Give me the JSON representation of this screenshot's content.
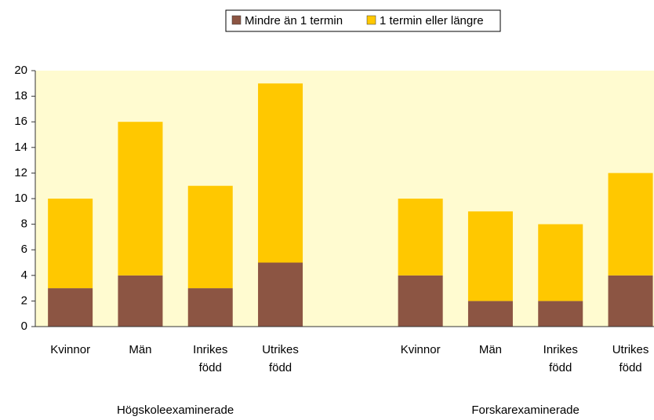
{
  "chart_data": {
    "type": "stacked_bar",
    "categories": [
      "Kvinnor",
      "Män",
      "Inrikes\nfödd",
      "Utrikes\nfödd",
      null,
      "Kvinnor",
      "Män",
      "Inrikes\nfödd",
      "Utrikes\nfödd"
    ],
    "groups": [
      "Högskoleexaminerade",
      "Forskarexaminerade"
    ],
    "series": [
      {
        "name": "Mindre än 1 termin",
        "color": "#8c5543",
        "values": [
          3,
          4,
          3,
          5,
          null,
          4,
          2,
          2,
          4
        ]
      },
      {
        "name": "1 termin eller längre",
        "color": "#ffc800",
        "values": [
          7,
          12,
          8,
          14,
          null,
          6,
          7,
          6,
          8
        ]
      }
    ],
    "ylim": [
      0,
      20
    ],
    "yticks": [
      0,
      2,
      4,
      6,
      8,
      10,
      12,
      14,
      16,
      18,
      20
    ],
    "legend": "top",
    "plot_background": "#fffbd0"
  }
}
